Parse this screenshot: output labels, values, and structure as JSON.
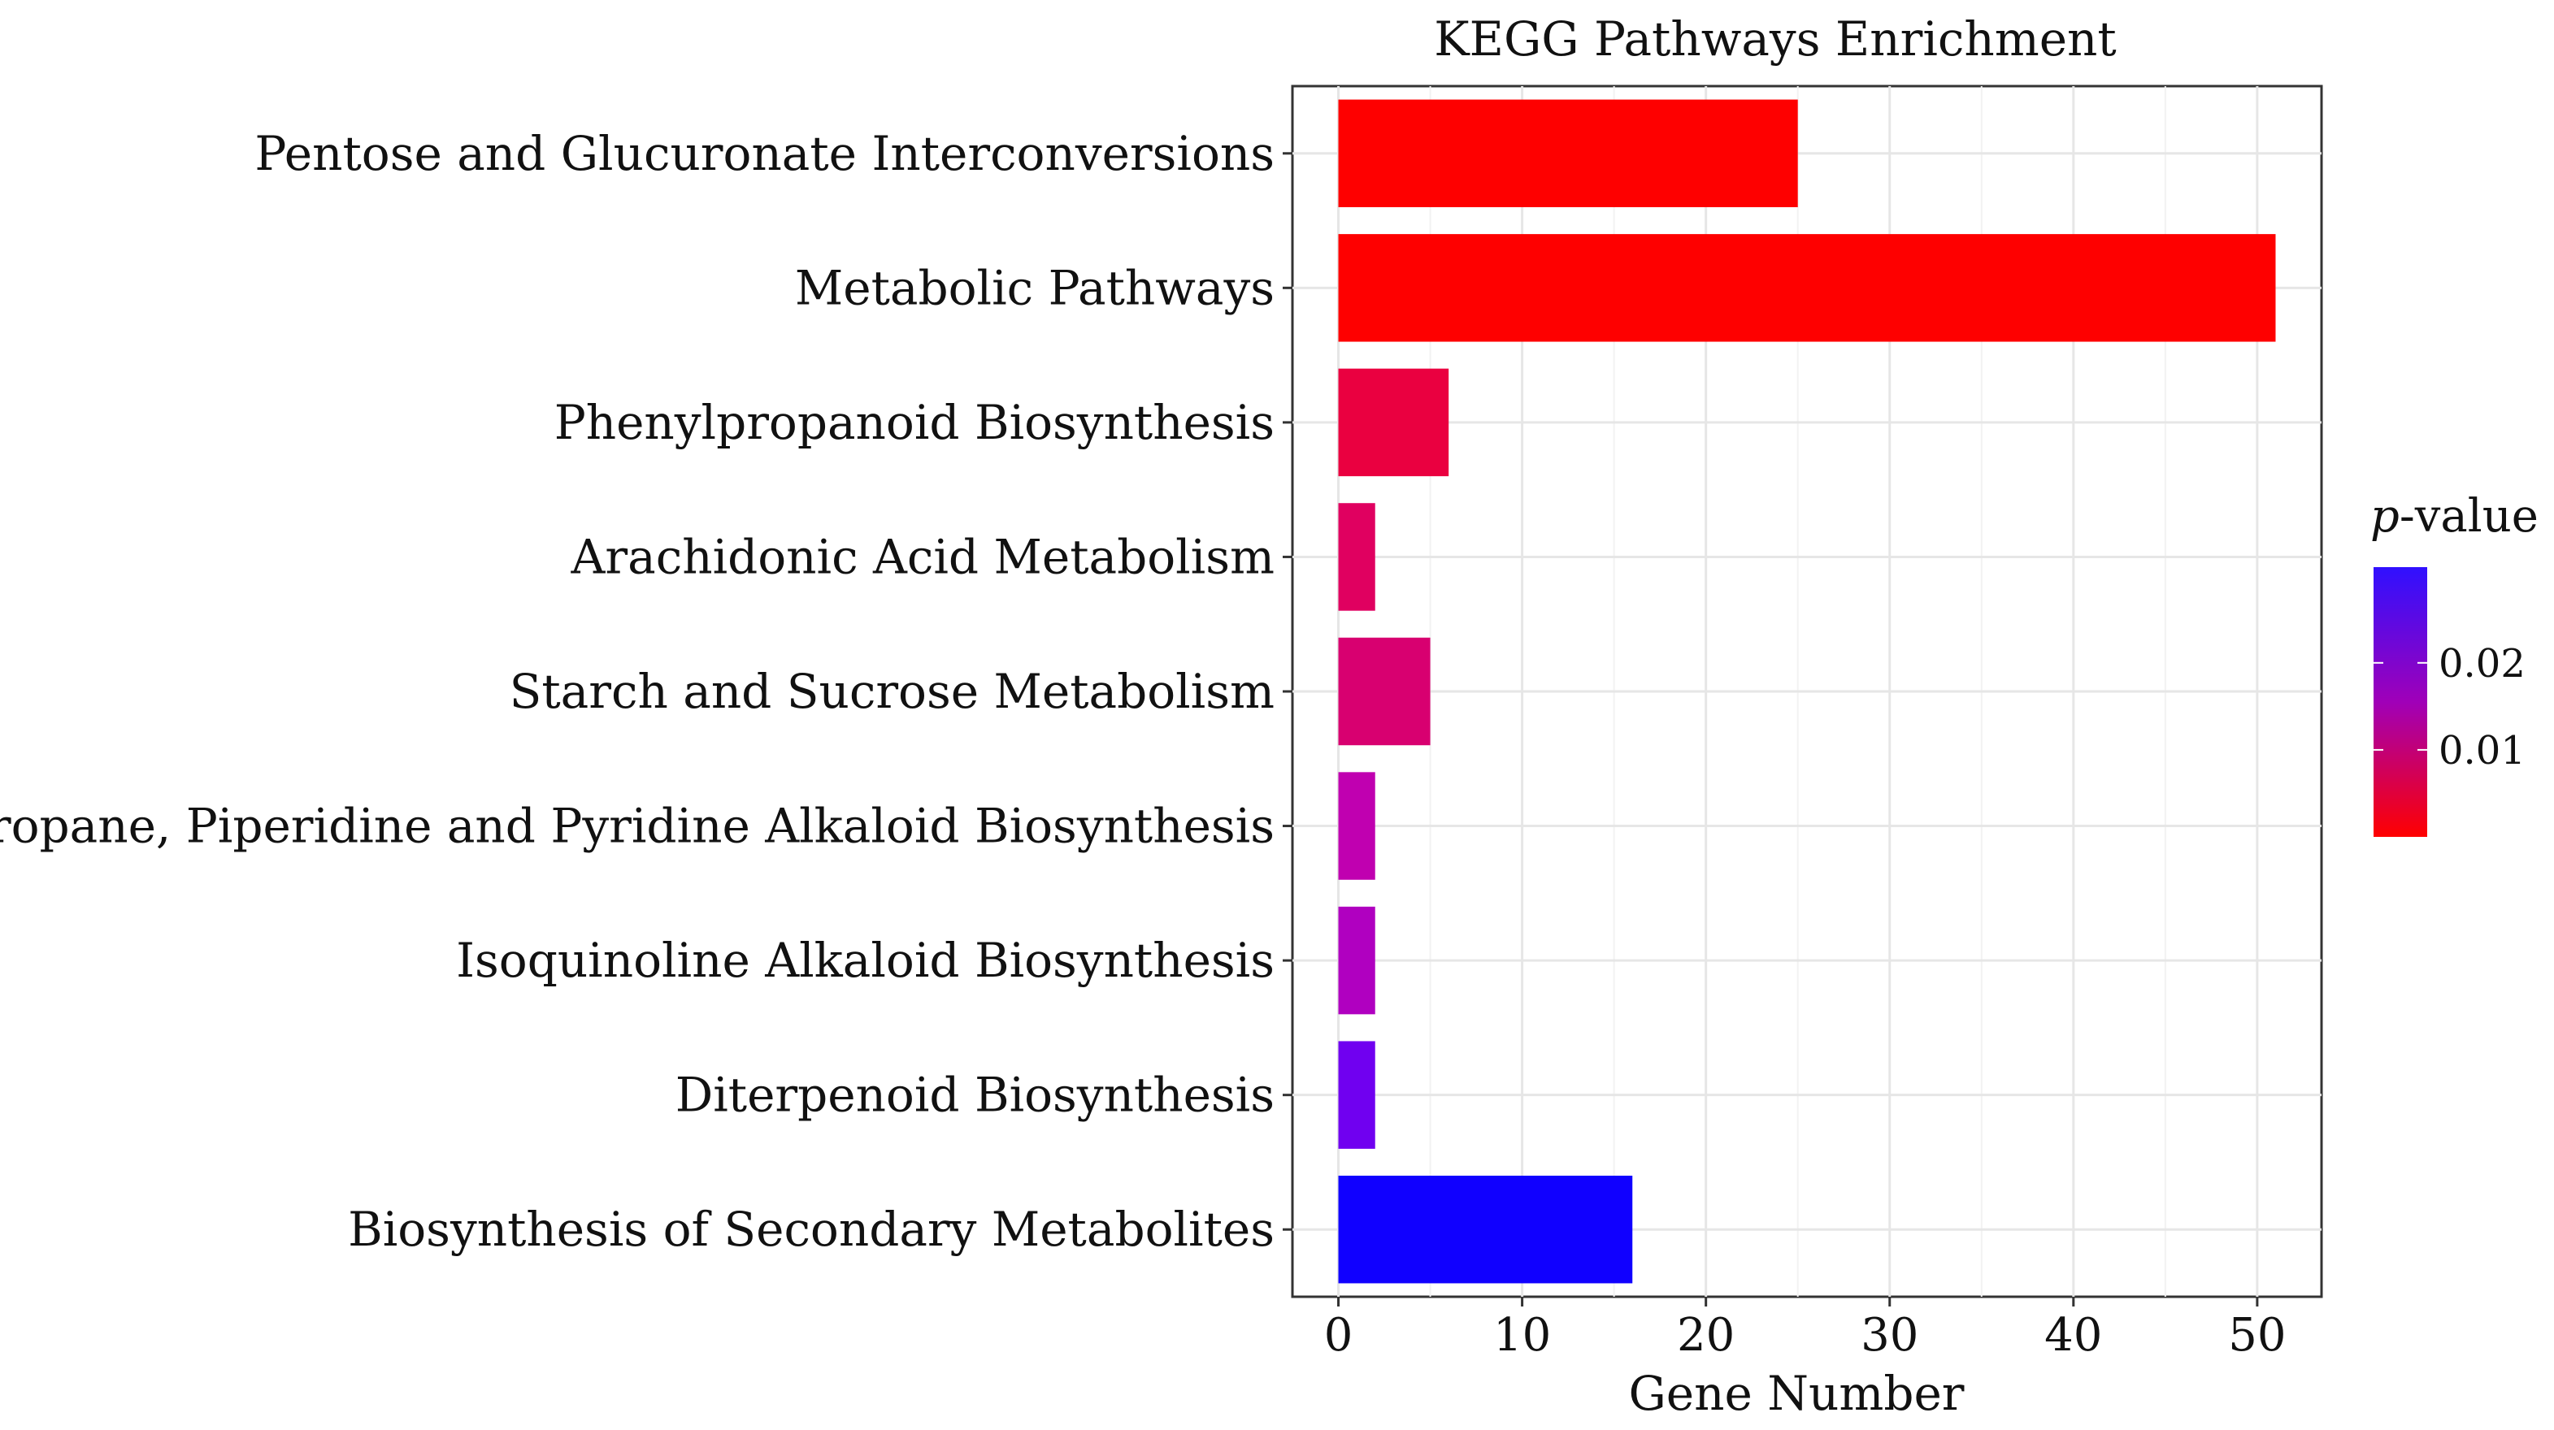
{
  "chart_data": {
    "type": "bar",
    "orientation": "horizontal",
    "title": "KEGG Pathways Enrichment",
    "xlabel": "Gene Number",
    "ylabel": "",
    "xlim": [
      -2.5,
      53.5
    ],
    "xticks": [
      0,
      10,
      20,
      30,
      40,
      50
    ],
    "xtick_labels": [
      "0",
      "10",
      "20",
      "30",
      "40",
      "50"
    ],
    "categories": [
      "Pentose and Glucuronate Interconversions",
      "Metabolic Pathways",
      "Phenylpropanoid Biosynthesis",
      "Arachidonic Acid Metabolism",
      "Starch and Sucrose Metabolism",
      "Tropane, Piperidine and Pyridine Alkaloid Biosynthesis",
      "Isoquinoline Alkaloid Biosynthesis",
      "Diterpenoid Biosynthesis",
      "Biosynthesis of Secondary Metabolites"
    ],
    "values": [
      25,
      51,
      6,
      2,
      5,
      2,
      2,
      2,
      16
    ],
    "pvalues": [
      0.0001,
      0.0002,
      0.004,
      0.008,
      0.01,
      0.017,
      0.02,
      0.026,
      0.033
    ],
    "bar_colors": [
      "#fe0000",
      "#fe0000",
      "#ea0040",
      "#e00060",
      "#d80070",
      "#c000b0",
      "#b000c0",
      "#7000f0",
      "#1000ff"
    ],
    "colorbar": {
      "title_italic": "p",
      "title_rest": "-value",
      "tick_labels": [
        "0.02",
        "0.01"
      ],
      "tick_values": [
        0.02,
        0.01
      ],
      "range": [
        0,
        0.031
      ],
      "low_color": "#ff0000",
      "mid_color": "#a000b8",
      "high_color": "#3010ff"
    },
    "grid": true,
    "legend_position": "right"
  }
}
